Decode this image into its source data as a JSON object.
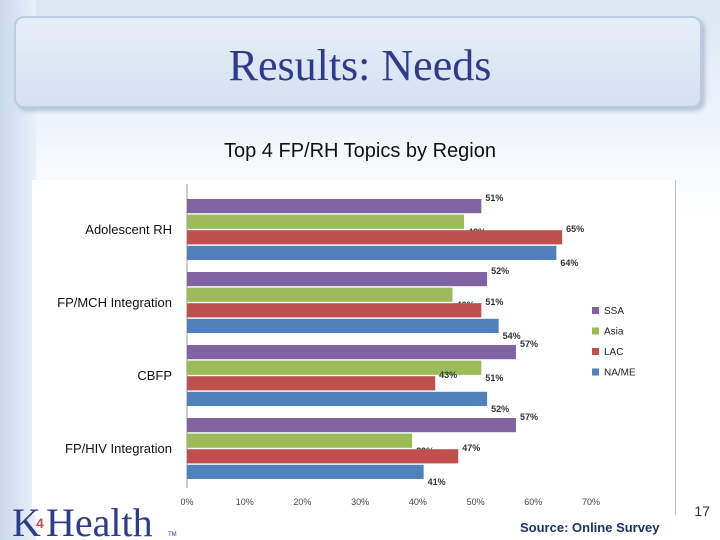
{
  "slide": {
    "title": "Results: Needs",
    "page_number": "17",
    "source": "Source: Online Survey",
    "logo_text": "K4Health",
    "colors": {
      "title": "#2e3a8c",
      "background_top": "#dbe6f3",
      "source": "#1d2f6f"
    }
  },
  "chart_data": {
    "type": "bar",
    "orientation": "horizontal",
    "title": "Top 4 FP/RH Topics by Region",
    "categories": [
      "Adolescent RH",
      "FP/MCH Integration",
      "CBFP",
      "FP/HIV Integration"
    ],
    "series": [
      {
        "name": "SSA",
        "color": "#8064a2",
        "values": [
          51,
          52,
          57,
          57
        ],
        "labels": [
          "51%",
          "52%",
          "57%",
          "57%"
        ]
      },
      {
        "name": "Asia",
        "color": "#9bbb59",
        "values": [
          48,
          46,
          51,
          39
        ],
        "labels": [
          "48%",
          "46%",
          "51%",
          "39%"
        ]
      },
      {
        "name": "LAC",
        "color": "#c0504d",
        "values": [
          65,
          51,
          43,
          47
        ],
        "labels": [
          "65%",
          "51%",
          "43%",
          "47%"
        ]
      },
      {
        "name": "NA/ME",
        "color": "#4f81bd",
        "values": [
          64,
          54,
          52,
          41
        ],
        "labels": [
          "64%",
          "54%",
          "52%",
          "41%"
        ]
      }
    ],
    "xlim": [
      0,
      70
    ],
    "x_ticks": [
      "0%",
      "10%",
      "20%",
      "30%",
      "40%",
      "50%",
      "60%",
      "70%"
    ],
    "xlabel": "",
    "ylabel": "",
    "grid": false,
    "legend_position": "right"
  }
}
